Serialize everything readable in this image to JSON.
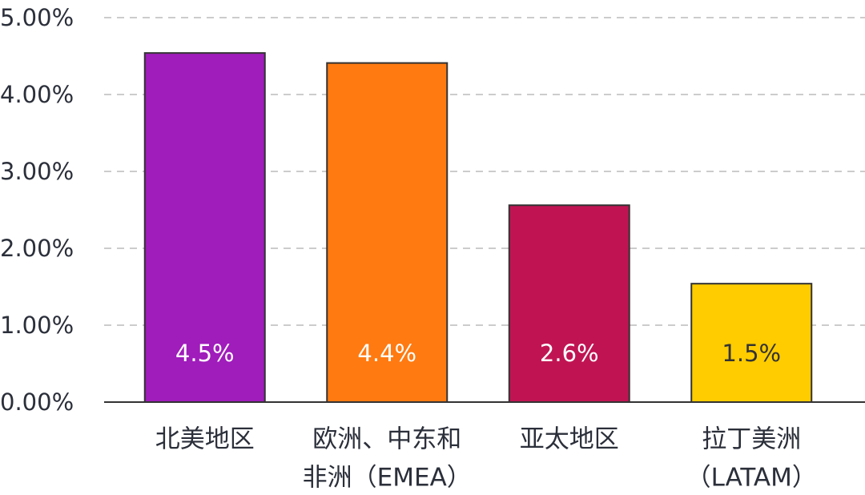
{
  "chart_data": {
    "type": "bar",
    "categories": [
      [
        "北美地区"
      ],
      [
        "欧洲、中东和",
        "非洲（EMEA）"
      ],
      [
        "亚太地区"
      ],
      [
        "拉丁美洲",
        "（LATAM）"
      ]
    ],
    "values": [
      4.54,
      4.41,
      2.56,
      1.54
    ],
    "value_labels": [
      "4.5%",
      "4.4%",
      "2.6%",
      "1.5%"
    ],
    "colors": [
      "#a01cbb",
      "#ff7a10",
      "#c01452",
      "#ffcc00"
    ],
    "label_colors": [
      "#ffffff",
      "#ffffff",
      "#ffffff",
      "#333333"
    ],
    "ylim": [
      0,
      5
    ],
    "yticks": [
      {
        "value": 0,
        "label": "0.00%"
      },
      {
        "value": 1,
        "label": "1.00%"
      },
      {
        "value": 2,
        "label": "2.00%"
      },
      {
        "value": 3,
        "label": "3.00%"
      },
      {
        "value": 4,
        "label": "4.00%"
      },
      {
        "value": 5,
        "label": "5.00%"
      }
    ],
    "grid": true
  }
}
